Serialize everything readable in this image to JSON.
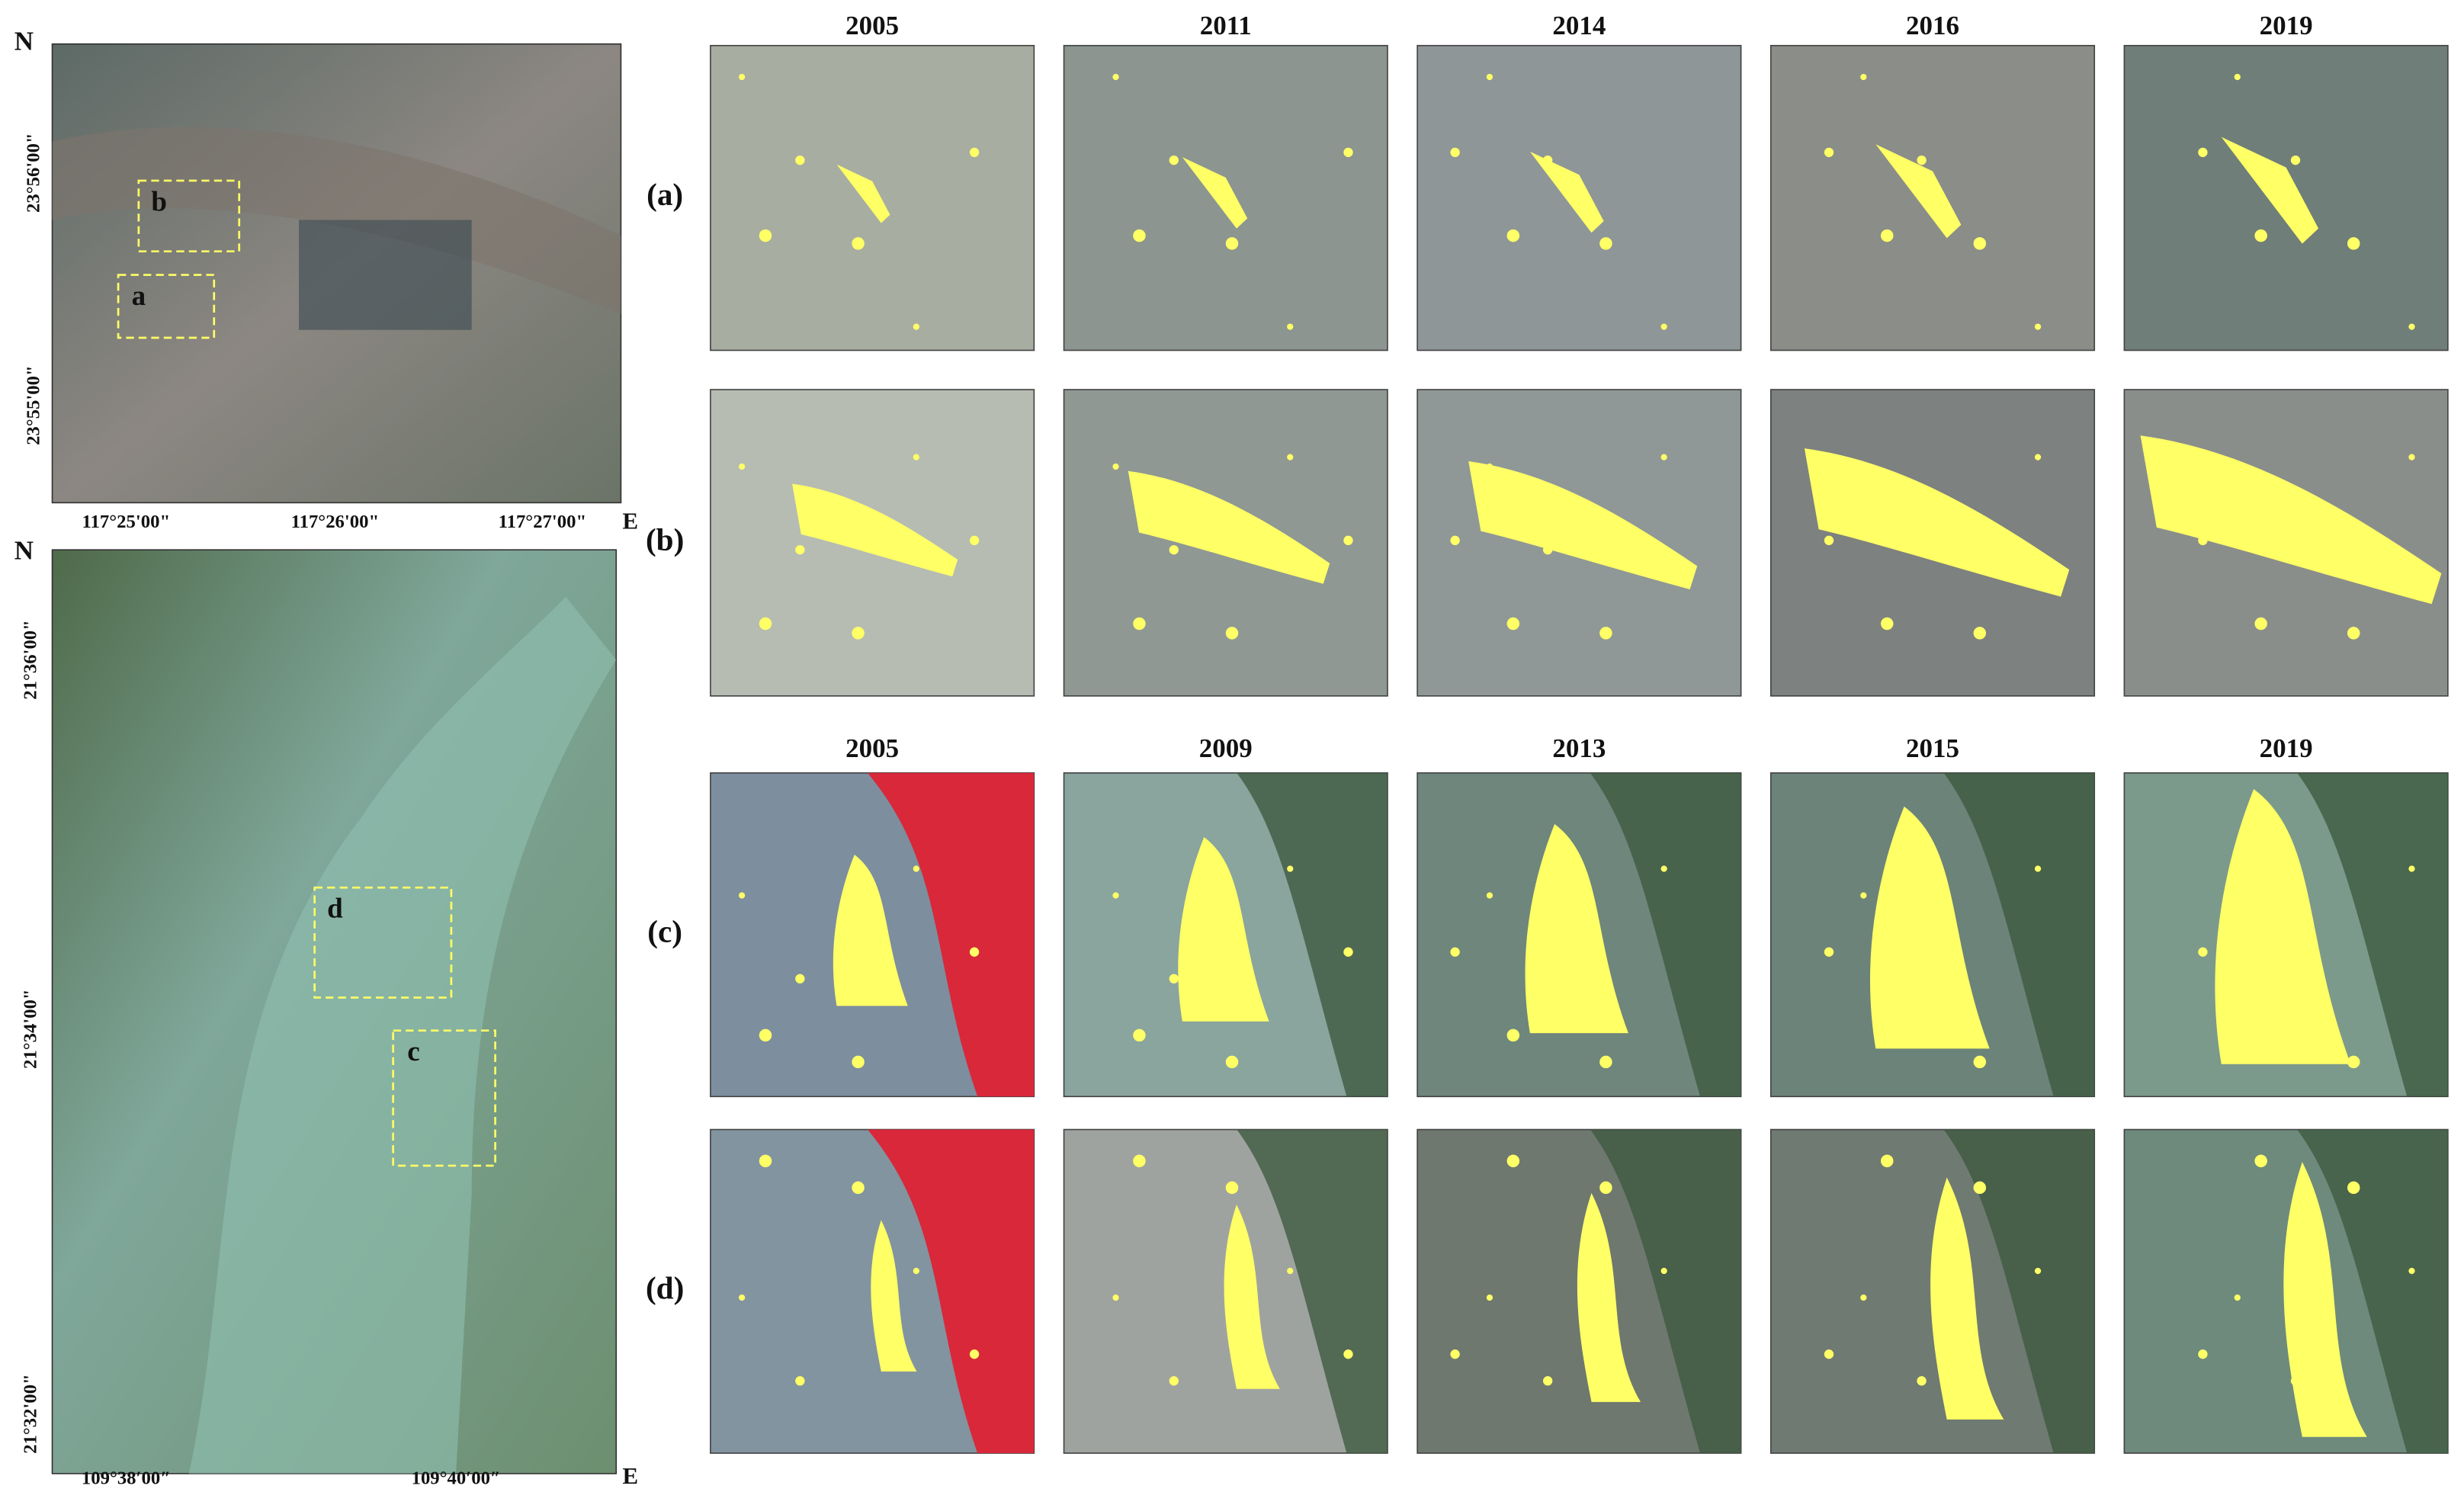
{
  "top_map": {
    "north": "N",
    "east": "E",
    "lat_labels": [
      "23°56'00\"",
      "23°55'00\""
    ],
    "lon_labels": [
      "117°25'00\"",
      "117°26'00\"",
      "117°27'00\""
    ],
    "boxes": [
      "b",
      "a"
    ]
  },
  "bottom_map": {
    "north": "N",
    "east": "E",
    "lat_labels": [
      "21°36'00\"",
      "21°34'00\"",
      "21°32'00\""
    ],
    "lon_labels": [
      "109°38′00″",
      "109°40′00″"
    ],
    "boxes": [
      "d",
      "c"
    ]
  },
  "year_headers": [
    [
      "2005",
      "2011",
      "2014",
      "2016",
      "2019"
    ],
    [
      "2005",
      "2009",
      "2013",
      "2015",
      "2019"
    ]
  ],
  "row_labels": [
    "(a)",
    "(b)",
    "(c)",
    "(d)"
  ]
}
